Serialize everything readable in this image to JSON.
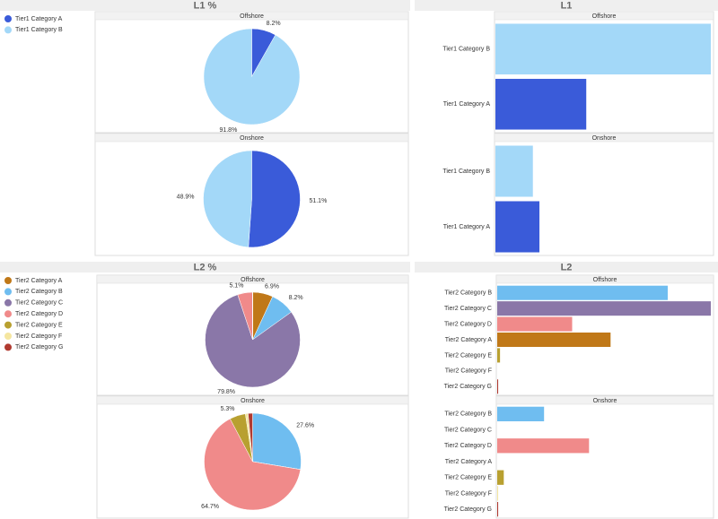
{
  "chart_data": [
    {
      "type": "pie",
      "title": "L1 %",
      "legend": "left",
      "categories": [
        "Tier1 Category A",
        "Tier1 Category B"
      ],
      "colors": [
        "#3a5bd9",
        "#a3d8f8"
      ],
      "facets": [
        {
          "name": "Offshore",
          "values": [
            8.2,
            91.8
          ],
          "value_labels": [
            "8.2%",
            "91.8%"
          ]
        },
        {
          "name": "Onshore",
          "values": [
            51.1,
            48.9
          ],
          "value_labels": [
            "51.1%",
            "48.9%"
          ]
        }
      ]
    },
    {
      "type": "bar",
      "title": "L1",
      "categories": [
        "Tier1 Category B",
        "Tier1 Category A"
      ],
      "colors": [
        "#a3d8f8",
        "#3a5bd9"
      ],
      "facets": [
        {
          "name": "Offshore",
          "values": [
            230,
            97
          ]
        },
        {
          "name": "Onshore",
          "values": [
            40,
            47
          ]
        }
      ]
    },
    {
      "type": "pie",
      "title": "L2 %",
      "legend": "left",
      "categories": [
        "Tier2 Category A",
        "Tier2 Category B",
        "Tier2 Category C",
        "Tier2 Category D",
        "Tier2 Category E",
        "Tier2 Category F",
        "Tier2 Category G"
      ],
      "colors": [
        "#c07818",
        "#6fbdf0",
        "#8a77a8",
        "#f08a8a",
        "#b8a030",
        "#f5e6a0",
        "#b03a30"
      ],
      "facets": [
        {
          "name": "Offshore",
          "values": [
            6.9,
            8.2,
            79.8,
            5.1,
            0,
            0,
            0
          ],
          "value_labels": [
            "6.9%",
            "8.2%",
            "79.8%",
            "5.1%",
            null,
            null,
            null
          ]
        },
        {
          "name": "Onshore",
          "values": [
            0,
            27.6,
            0,
            64.7,
            5.3,
            0.9,
            1.5
          ],
          "value_labels": [
            null,
            "27.6%",
            null,
            "64.7%",
            "5.3%",
            null,
            null
          ]
        }
      ]
    },
    {
      "type": "bar",
      "title": "L2",
      "categories": [
        "Tier2 Category B",
        "Tier2 Category C",
        "Tier2 Category D",
        "Tier2 Category A",
        "Tier2 Category E",
        "Tier2 Category F",
        "Tier2 Category G"
      ],
      "colors": [
        "#6fbdf0",
        "#8a77a8",
        "#f08a8a",
        "#c07818",
        "#b8a030",
        "#f5e6a0",
        "#b03a30"
      ],
      "facets": [
        {
          "name": "Offshore",
          "values": [
            182,
            228,
            80,
            121,
            3,
            0,
            1
          ]
        },
        {
          "name": "Onshore",
          "values": [
            50,
            0,
            98,
            0,
            7,
            1,
            1
          ]
        }
      ]
    }
  ]
}
